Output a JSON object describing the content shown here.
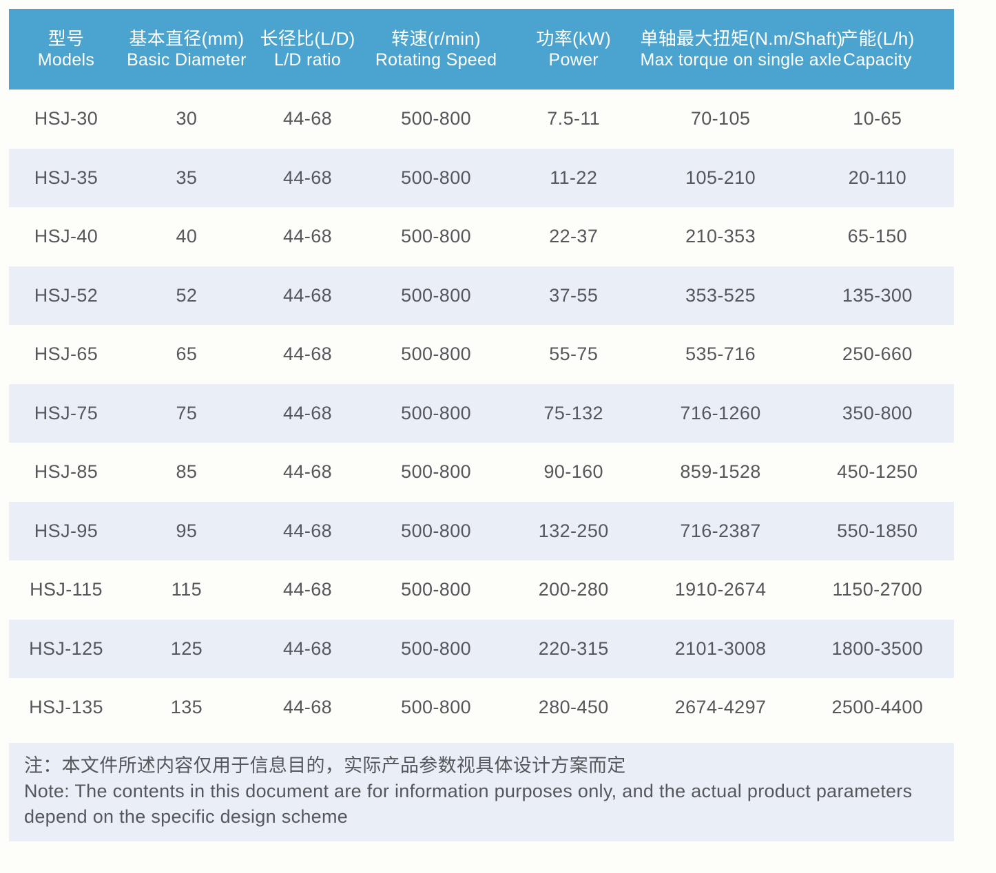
{
  "table": {
    "columns": [
      {
        "zh": "型号",
        "en": "Models"
      },
      {
        "zh": "基本直径(mm)",
        "en": "Basic Diameter"
      },
      {
        "zh": "长径比(L/D)",
        "en": "L/D ratio"
      },
      {
        "zh": "转速(r/min)",
        "en": "Rotating Speed"
      },
      {
        "zh": "功率(kW)",
        "en": "Power"
      },
      {
        "zh": "单轴最大扭矩(N.m/Shaft)",
        "en": "Max torque on single axle"
      },
      {
        "zh": "产能(L/h)",
        "en": "Capacity"
      }
    ],
    "rows": [
      [
        "HSJ-30",
        "30",
        "44-68",
        "500-800",
        "7.5-11",
        "70-105",
        "10-65"
      ],
      [
        "HSJ-35",
        "35",
        "44-68",
        "500-800",
        "11-22",
        "105-210",
        "20-110"
      ],
      [
        "HSJ-40",
        "40",
        "44-68",
        "500-800",
        "22-37",
        "210-353",
        "65-150"
      ],
      [
        "HSJ-52",
        "52",
        "44-68",
        "500-800",
        "37-55",
        "353-525",
        "135-300"
      ],
      [
        "HSJ-65",
        "65",
        "44-68",
        "500-800",
        "55-75",
        "535-716",
        "250-660"
      ],
      [
        "HSJ-75",
        "75",
        "44-68",
        "500-800",
        "75-132",
        "716-1260",
        "350-800"
      ],
      [
        "HSJ-85",
        "85",
        "44-68",
        "500-800",
        "90-160",
        "859-1528",
        "450-1250"
      ],
      [
        "HSJ-95",
        "95",
        "44-68",
        "500-800",
        "132-250",
        "716-2387",
        "550-1850"
      ],
      [
        "HSJ-115",
        "115",
        "44-68",
        "500-800",
        "200-280",
        "1910-2674",
        "1150-2700"
      ],
      [
        "HSJ-125",
        "125",
        "44-68",
        "500-800",
        "220-315",
        "2101-3008",
        "1800-3500"
      ],
      [
        "HSJ-135",
        "135",
        "44-68",
        "500-800",
        "280-450",
        "2674-4297",
        "2500-4400"
      ]
    ]
  },
  "note": {
    "zh": "注：本文件所述内容仅用于信息目的，实际产品参数视具体设计方案而定",
    "en": "Note: The contents in this document are for information purposes only, and the actual product parameters depend on the specific design scheme"
  },
  "colors": {
    "header_bg": "#4ba4cf",
    "header_text": "#ffffff",
    "stripe_bg": "#e9eef7",
    "cell_text": "#55575b",
    "page_bg": "#fdfdfa"
  }
}
